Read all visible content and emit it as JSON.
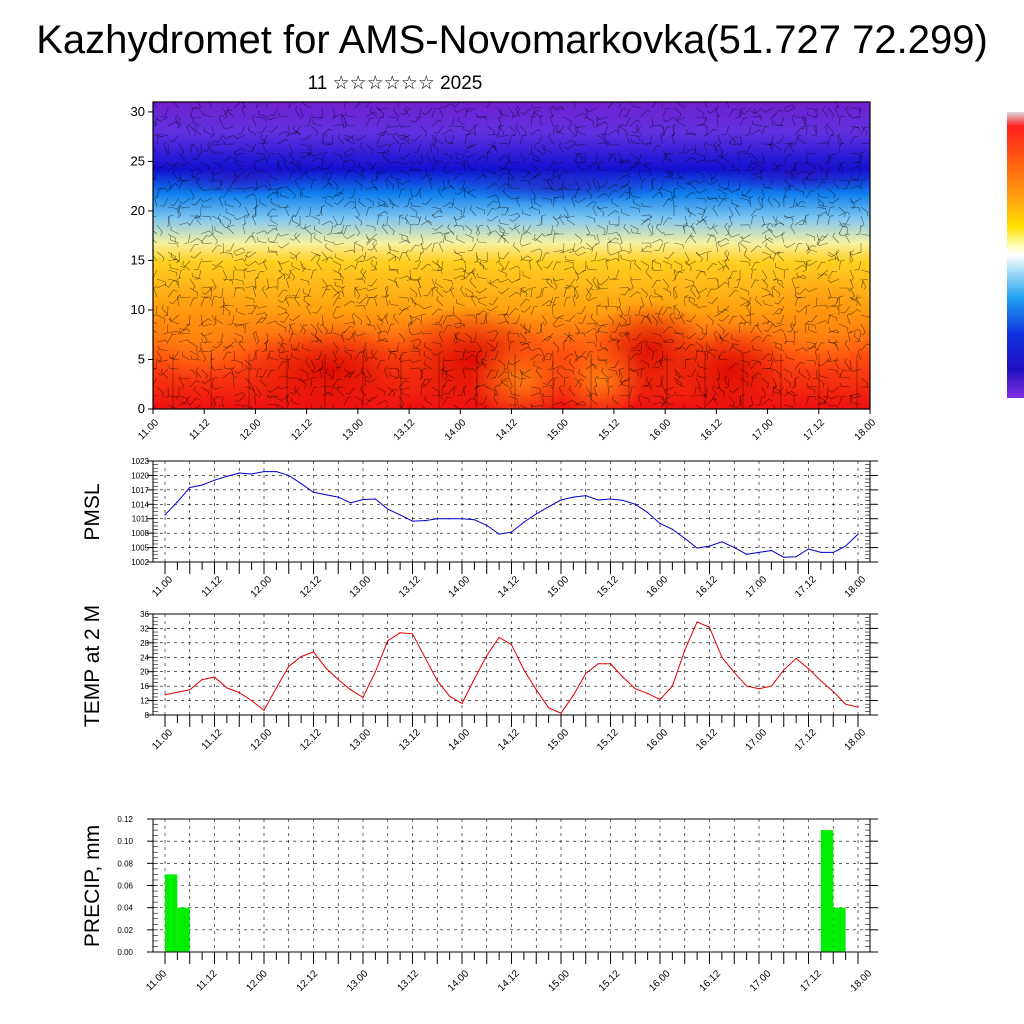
{
  "page": {
    "title": "Kazhydromet for AMS-Novomarkovka(51.727 72.299)",
    "subtitle": "11 ☆☆☆☆☆☆ 2025"
  },
  "chart_data": [
    {
      "type": "heatmap",
      "title": "",
      "ylim": [
        0,
        31
      ],
      "yticks": [
        0,
        5,
        10,
        15,
        20,
        25,
        30
      ],
      "xticks": [
        "11.00",
        "11.12",
        "12.00",
        "12.12",
        "13.00",
        "13.12",
        "14.00",
        "14.12",
        "15.00",
        "15.12",
        "16.00",
        "16.12",
        "17.00",
        "17.12",
        "18.00"
      ],
      "overlay": "wind barbs",
      "colorbar": "rainbow-white-gray"
    },
    {
      "type": "line",
      "ylabel": "PMSL",
      "ylim": [
        1002,
        1023
      ],
      "yticks": [
        1002,
        1005,
        1008,
        1011,
        1014,
        1017,
        1020,
        1023
      ],
      "xticks": [
        "11.00",
        "11.12",
        "12.00",
        "12.12",
        "13.00",
        "13.12",
        "14.00",
        "14.12",
        "15.00",
        "15.12",
        "16.00",
        "16.12",
        "17.00",
        "17.12",
        "18.00"
      ],
      "color": "#0000cc",
      "values": [
        1011.8,
        1014.5,
        1017.5,
        1018.0,
        1019.0,
        1019.8,
        1020.5,
        1020.3,
        1020.8,
        1020.8,
        1020.0,
        1018.3,
        1016.5,
        1016.0,
        1015.5,
        1014.3,
        1015.0,
        1015.1,
        1013.0,
        1011.8,
        1010.5,
        1010.6,
        1011.0,
        1011.0,
        1011.0,
        1010.8,
        1009.6,
        1007.8,
        1008.2,
        1010.3,
        1012.0,
        1013.5,
        1014.9,
        1015.5,
        1015.8,
        1014.9,
        1015.1,
        1014.8,
        1014.0,
        1012.3,
        1010.0,
        1008.8,
        1006.9,
        1004.9,
        1005.3,
        1006.2,
        1005.0,
        1003.6,
        1004.0,
        1004.4,
        1003.0,
        1003.1,
        1004.7,
        1004.0,
        1004.0,
        1005.3,
        1007.8
      ]
    },
    {
      "type": "line",
      "ylabel": "TEMP at 2 M",
      "ylim": [
        8,
        36
      ],
      "yticks": [
        8,
        12,
        16,
        20,
        24,
        28,
        32,
        36
      ],
      "xticks": [
        "11.00",
        "11.12",
        "12.00",
        "12.12",
        "13.00",
        "13.12",
        "14.00",
        "14.12",
        "15.00",
        "15.12",
        "16.00",
        "16.12",
        "17.00",
        "17.12",
        "18.00"
      ],
      "color": "#e00000",
      "values": [
        13.6,
        14.3,
        15.0,
        17.8,
        18.5,
        15.5,
        14.2,
        12.0,
        9.3,
        15.5,
        21.5,
        24.2,
        25.5,
        21.0,
        17.8,
        15.0,
        12.9,
        20.0,
        28.6,
        30.8,
        30.5,
        24.0,
        17.5,
        13.2,
        11.2,
        18.0,
        24.5,
        29.5,
        27.5,
        20.5,
        15.0,
        10.0,
        8.5,
        13.5,
        19.5,
        22.2,
        22.2,
        18.5,
        15.3,
        14.0,
        12.3,
        16.0,
        26.0,
        33.8,
        32.3,
        24.0,
        19.8,
        16.0,
        15.3,
        16.0,
        20.5,
        23.7,
        20.8,
        17.5,
        14.5,
        11.0,
        10.2
      ]
    },
    {
      "type": "bar",
      "ylabel": "PRECIP, mm",
      "ylim": [
        0,
        0.12
      ],
      "yticks": [
        "0.00",
        "0.02",
        "0.04",
        "0.06",
        "0.08",
        "0.10",
        "0.12"
      ],
      "xticks": [
        "11.00",
        "11.12",
        "12.00",
        "12.12",
        "13.00",
        "13.12",
        "14.00",
        "14.12",
        "15.00",
        "15.12",
        "16.00",
        "16.12",
        "17.00",
        "17.12",
        "18.00"
      ],
      "color": "#00ee00",
      "bars": [
        {
          "x": 0,
          "value": 0.07
        },
        {
          "x": 1,
          "value": 0.04
        },
        {
          "x": 53,
          "value": 0.11
        },
        {
          "x": 54,
          "value": 0.04
        }
      ]
    }
  ]
}
